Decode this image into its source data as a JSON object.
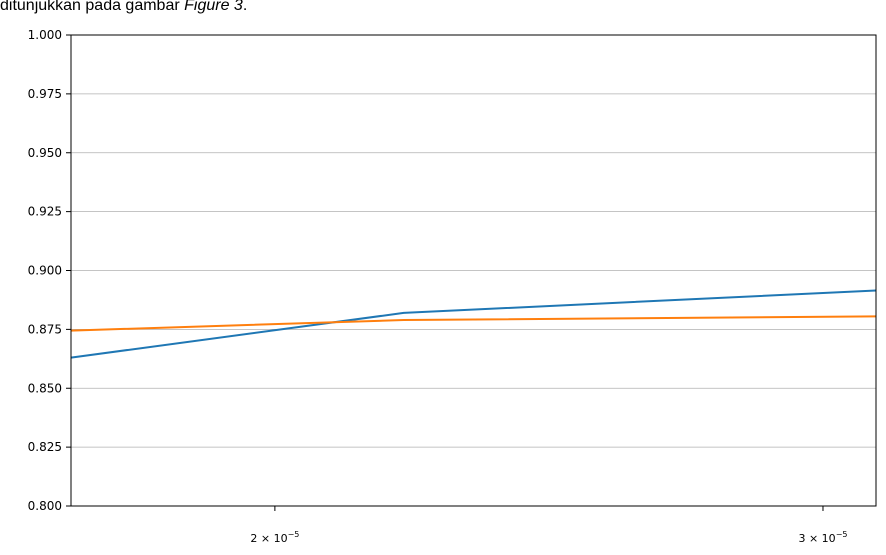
{
  "caption": {
    "text": "ditunjukkan pada gambar ",
    "emphasis": "Figure 3",
    "end": "."
  },
  "chart_data": {
    "type": "line",
    "title": "",
    "xlabel": "",
    "ylabel": "",
    "xscale": "log",
    "xlim": [
      1.72e-05,
      3.12e-05
    ],
    "ylim": [
      0.8,
      1.0
    ],
    "grid": "horizontal",
    "yticks": [
      "1.000",
      "0.975",
      "0.950",
      "0.925",
      "0.900",
      "0.875",
      "0.850",
      "0.825",
      "0.800"
    ],
    "ytick_values": [
      1.0,
      0.975,
      0.95,
      0.925,
      0.9,
      0.875,
      0.85,
      0.825,
      0.8
    ],
    "xticks": [
      {
        "value": 2e-05,
        "base": "2 × 10",
        "exp": "−5"
      },
      {
        "value": 3e-05,
        "base": "3 × 10",
        "exp": "−5"
      }
    ],
    "series": [
      {
        "color": "#1f77b4",
        "x": [
          1.72e-05,
          2.2e-05,
          3.12e-05
        ],
        "y": [
          0.863,
          0.882,
          0.8915
        ]
      },
      {
        "color": "#ff7f0e",
        "x": [
          1.72e-05,
          2.2e-05,
          3.12e-05
        ],
        "y": [
          0.8745,
          0.879,
          0.8805
        ]
      }
    ]
  }
}
